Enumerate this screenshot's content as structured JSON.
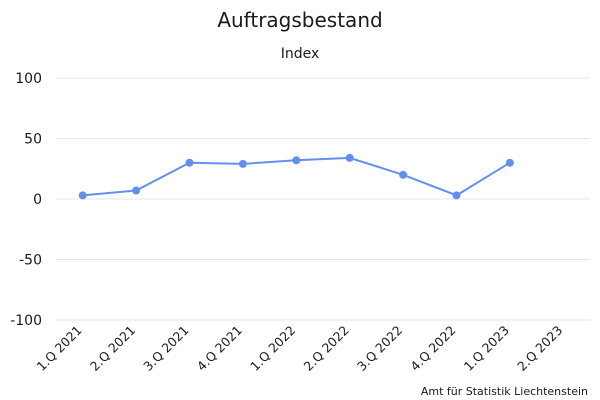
{
  "chart_data": {
    "type": "line",
    "title": "Auftragsbestand",
    "subtitle": "Index",
    "categories": [
      "1.Q 2021",
      "2.Q 2021",
      "3.Q 2021",
      "4.Q 2021",
      "1.Q 2022",
      "2.Q 2022",
      "3.Q 2022",
      "4.Q 2022",
      "1.Q 2023",
      "2.Q 2023"
    ],
    "series": [
      {
        "values": [
          3,
          7,
          30,
          29,
          32,
          34,
          20,
          3,
          30,
          null
        ],
        "color": "#6390ee"
      }
    ],
    "yticks": [
      100,
      50,
      0,
      -50,
      -100
    ],
    "ylim": [
      -100,
      100
    ],
    "grid": true,
    "legend": "none"
  },
  "credit": "Amt für Statistik Liechtenstein"
}
